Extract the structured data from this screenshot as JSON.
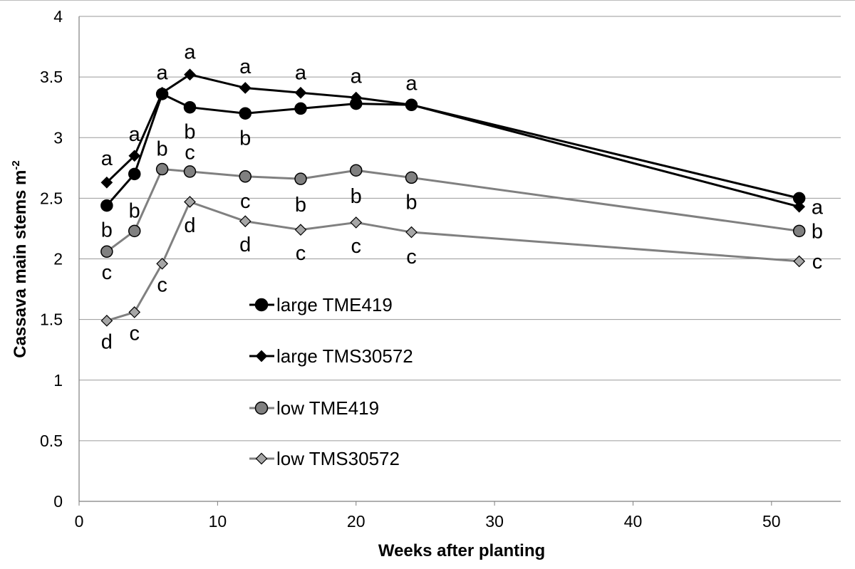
{
  "chart_data": {
    "type": "line",
    "title": "",
    "xlabel": "Weeks after planting",
    "ylabel_main": "Cassava main stems m",
    "ylabel_sup": "-2",
    "xlim": [
      0,
      55
    ],
    "ylim": [
      0,
      4
    ],
    "xticks": [
      0,
      10,
      20,
      30,
      40,
      50
    ],
    "yticks": [
      0,
      0.5,
      1,
      1.5,
      2,
      2.5,
      3,
      3.5,
      4
    ],
    "ytick_labels": [
      "0",
      "0.5",
      "1",
      "1.5",
      "2",
      "2.5",
      "3",
      "3.5",
      "4"
    ],
    "xtick_labels": [
      "0",
      "10",
      "20",
      "30",
      "40",
      "50"
    ],
    "grid": "horizontal",
    "legend_position": "center-left",
    "series": [
      {
        "name": "large TME419",
        "marker": "circle",
        "line_color": "#000000",
        "marker_fill": "#000000",
        "x": [
          2,
          4,
          6,
          8,
          12,
          16,
          20,
          24,
          52
        ],
        "y": [
          2.44,
          2.7,
          3.36,
          3.25,
          3.2,
          3.24,
          3.28,
          3.27,
          2.5
        ]
      },
      {
        "name": "large TMS30572",
        "marker": "diamond",
        "line_color": "#000000",
        "marker_fill": "#000000",
        "x": [
          2,
          4,
          6,
          8,
          12,
          16,
          20,
          24,
          52
        ],
        "y": [
          2.63,
          2.85,
          3.37,
          3.52,
          3.41,
          3.37,
          3.33,
          3.27,
          2.43
        ]
      },
      {
        "name": "low TME419",
        "marker": "circle",
        "line_color": "#808080",
        "marker_fill": "#808080",
        "x": [
          2,
          4,
          6,
          8,
          12,
          16,
          20,
          24,
          52
        ],
        "y": [
          2.06,
          2.23,
          2.74,
          2.72,
          2.68,
          2.66,
          2.73,
          2.67,
          2.23
        ]
      },
      {
        "name": "low TMS30572",
        "marker": "diamond",
        "line_color": "#808080",
        "marker_fill": "#a6a6a6",
        "x": [
          2,
          4,
          6,
          8,
          12,
          16,
          20,
          24,
          52
        ],
        "y": [
          1.49,
          1.56,
          1.96,
          2.47,
          2.31,
          2.24,
          2.3,
          2.22,
          1.98
        ]
      }
    ],
    "annotations": [
      {
        "text": "a",
        "x": 2,
        "y": 2.83
      },
      {
        "text": "b",
        "x": 2,
        "y": 2.24
      },
      {
        "text": "c",
        "x": 2,
        "y": 1.89
      },
      {
        "text": "d",
        "x": 2,
        "y": 1.32
      },
      {
        "text": "a",
        "x": 4,
        "y": 3.03
      },
      {
        "text": "b",
        "x": 4,
        "y": 2.4
      },
      {
        "text": "c",
        "x": 4,
        "y": 1.39
      },
      {
        "text": "a",
        "x": 6,
        "y": 3.54
      },
      {
        "text": "b",
        "x": 6,
        "y": 2.91
      },
      {
        "text": "c",
        "x": 6,
        "y": 1.79
      },
      {
        "text": "a",
        "x": 8,
        "y": 3.71
      },
      {
        "text": "b",
        "x": 8,
        "y": 3.05
      },
      {
        "text": "c",
        "x": 8,
        "y": 2.88
      },
      {
        "text": "d",
        "x": 8,
        "y": 2.28
      },
      {
        "text": "a",
        "x": 12,
        "y": 3.59
      },
      {
        "text": "b",
        "x": 12,
        "y": 3.0
      },
      {
        "text": "c",
        "x": 12,
        "y": 2.48
      },
      {
        "text": "d",
        "x": 12,
        "y": 2.12
      },
      {
        "text": "a",
        "x": 16,
        "y": 3.54
      },
      {
        "text": "b",
        "x": 16,
        "y": 2.45
      },
      {
        "text": "c",
        "x": 16,
        "y": 2.05
      },
      {
        "text": "a",
        "x": 20,
        "y": 3.51
      },
      {
        "text": "b",
        "x": 20,
        "y": 2.52
      },
      {
        "text": "c",
        "x": 20,
        "y": 2.11
      },
      {
        "text": "a",
        "x": 24,
        "y": 3.45
      },
      {
        "text": "b",
        "x": 24,
        "y": 2.47
      },
      {
        "text": "c",
        "x": 24,
        "y": 2.02
      },
      {
        "text": "a",
        "x": 53.3,
        "y": 2.43
      },
      {
        "text": "b",
        "x": 53.3,
        "y": 2.23
      },
      {
        "text": "c",
        "x": 53.3,
        "y": 1.98
      }
    ]
  }
}
